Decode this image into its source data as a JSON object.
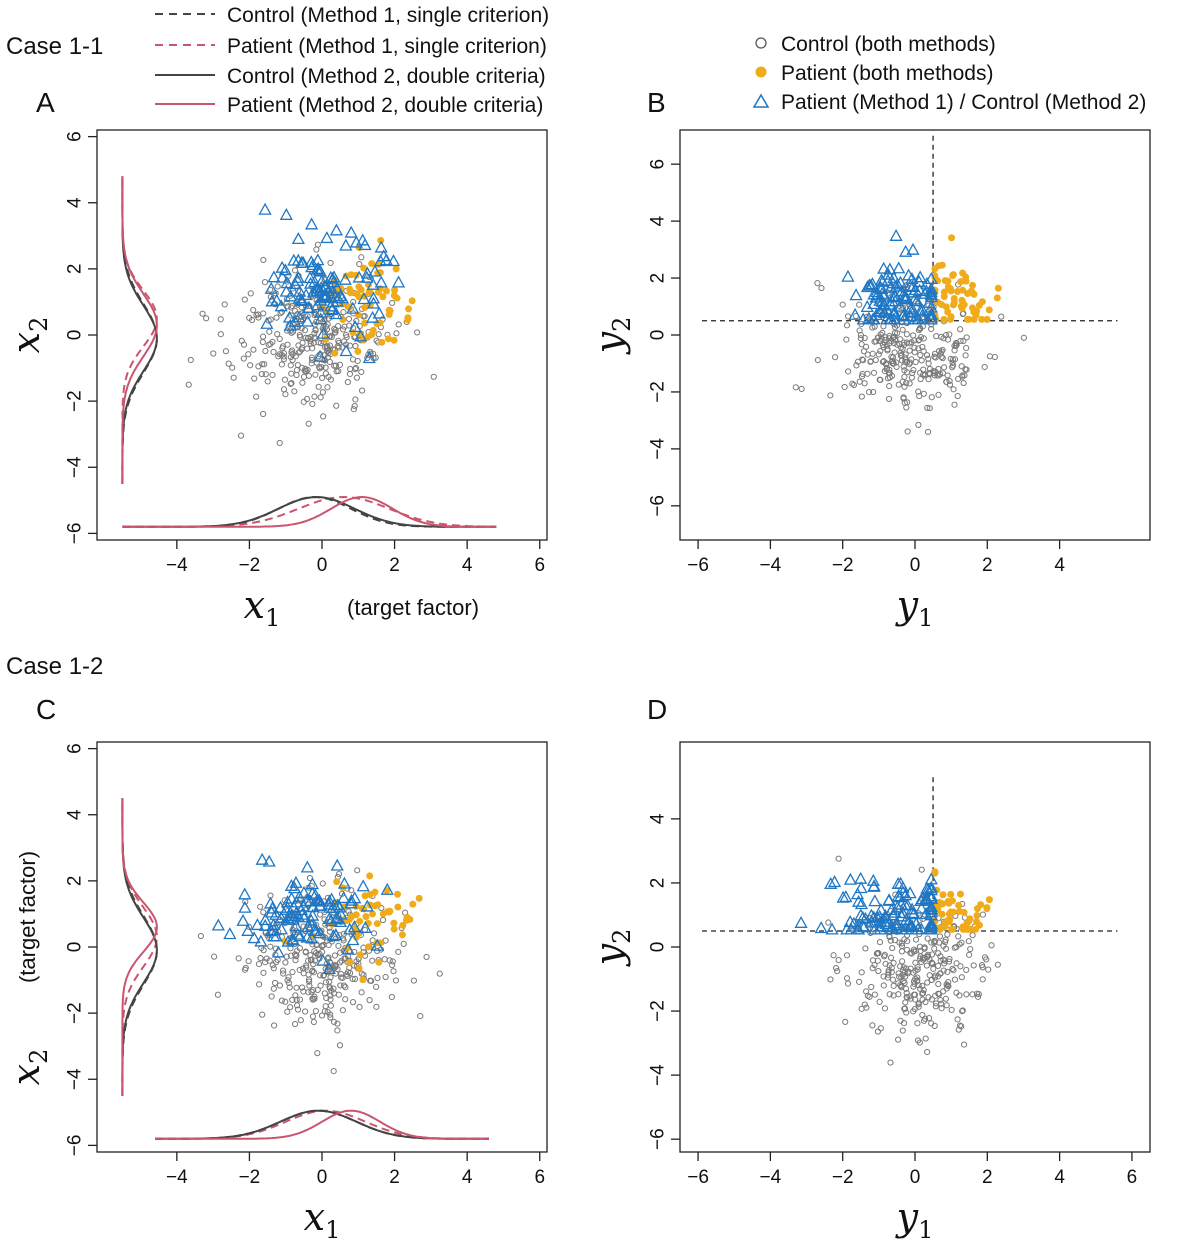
{
  "figure": {
    "case_labels": [
      "Case 1-1",
      "Case 1-2"
    ],
    "legend_left": [
      {
        "label": "Control (Method 1, single criterion)",
        "color": "#444444",
        "dash": true
      },
      {
        "label": "Patient (Method 1, single criterion)",
        "color": "#c9566e",
        "dash": true
      },
      {
        "label": "Control (Method 2, double criteria)",
        "color": "#444444",
        "dash": false
      },
      {
        "label": "Patient (Method 2, double criteria)",
        "color": "#c9566e",
        "dash": false
      }
    ],
    "legend_right": [
      {
        "label": "Control (both methods)",
        "marker": "open-circle",
        "color": "#555555"
      },
      {
        "label": "Patient (both methods)",
        "marker": "filled-circle",
        "color": "#f0ab1a"
      },
      {
        "label": "Patient (Method 1) / Control (Method 2)",
        "marker": "open-triangle",
        "color": "#1f77c4"
      }
    ],
    "colors": {
      "control_point": "#7a7a7a",
      "patient_point": "#f0ab1a",
      "switch_point": "#1f77c4",
      "control_line": "#444444",
      "patient_line": "#c9566e"
    }
  },
  "chart_data": [
    {
      "panel": "A",
      "type": "scatter",
      "xlabel_math": "x",
      "xlabel_sub": "1",
      "xlabel_extra": "(target factor)",
      "ylabel_math": "x",
      "ylabel_sub": "2",
      "ylabel_extra": "",
      "xlim": [
        -6.2,
        6.2
      ],
      "ylim": [
        -6.2,
        6.2
      ],
      "xticks": [
        -4,
        -2,
        0,
        2,
        4,
        6
      ],
      "yticks": [
        -6,
        -4,
        -2,
        0,
        2,
        4,
        6
      ],
      "control_center": [
        -0.3,
        -0.2
      ],
      "control_sd": [
        1.05,
        1.05
      ],
      "control_n": 330,
      "blue_center": [
        0.2,
        1.4
      ],
      "blue_sd": [
        0.75,
        0.75
      ],
      "blue_n": 115,
      "patient_center": [
        1.2,
        0.8
      ],
      "patient_sd": [
        0.6,
        0.9
      ],
      "patient_n": 65,
      "marginals": {
        "baseline_y": -5.8,
        "baseline_x": -5.5,
        "x_density": {
          "x_range": [
            -5.5,
            4.8
          ],
          "peak_height": 0.9,
          "curves": [
            {
              "series": "Control M1",
              "mu": -0.2,
              "sd": 1.0,
              "dash": true
            },
            {
              "series": "Patient M1",
              "mu": 0.6,
              "sd": 1.25,
              "dash": true
            },
            {
              "series": "Control M2",
              "mu": -0.15,
              "sd": 1.05,
              "dash": false
            },
            {
              "series": "Patient M2",
              "mu": 1.1,
              "sd": 0.85,
              "dash": false
            }
          ]
        },
        "y_density": {
          "y_range": [
            -4.5,
            4.8
          ],
          "peak_width": 0.95,
          "curves": [
            {
              "series": "Control M1",
              "mu": -0.1,
              "sd": 1.05,
              "dash": true
            },
            {
              "series": "Patient M1",
              "mu": 0.5,
              "sd": 0.85,
              "dash": true
            },
            {
              "series": "Control M2",
              "mu": -0.1,
              "sd": 1.0,
              "dash": false
            },
            {
              "series": "Patient M2",
              "mu": 0.3,
              "sd": 0.95,
              "dash": false
            }
          ]
        }
      }
    },
    {
      "panel": "B",
      "type": "scatter",
      "xlabel_math": "y",
      "xlabel_sub": "1",
      "xlabel_extra": "",
      "ylabel_math": "y",
      "ylabel_sub": "2",
      "ylabel_extra": "",
      "xlim": [
        -6.5,
        6.5
      ],
      "ylim": [
        -7.2,
        7.2
      ],
      "xticks": [
        -6,
        -4,
        -2,
        0,
        2,
        4
      ],
      "yticks": [
        -6,
        -4,
        -2,
        0,
        2,
        4,
        6
      ],
      "thresholds": {
        "x": 0.5,
        "y": 0.5,
        "vline_top": 7.0,
        "hline_right": 5.6
      },
      "control_center": [
        -0.2,
        -0.5
      ],
      "control_sd": [
        0.95,
        0.95
      ],
      "control_n": 300,
      "blue_center": [
        -0.4,
        1.2
      ],
      "blue_sd": [
        0.6,
        0.6
      ],
      "blue_n": 110,
      "patient_center": [
        1.2,
        1.3
      ],
      "patient_sd": [
        0.5,
        0.7
      ],
      "patient_n": 60
    },
    {
      "panel": "C",
      "type": "scatter",
      "xlabel_math": "x",
      "xlabel_sub": "1",
      "xlabel_extra": "",
      "ylabel_math": "x",
      "ylabel_sub": "2",
      "ylabel_extra": "(target factor)",
      "xlim": [
        -6.2,
        6.2
      ],
      "ylim": [
        -6.2,
        6.2
      ],
      "xticks": [
        -4,
        -2,
        0,
        2,
        4,
        6
      ],
      "yticks": [
        -6,
        -4,
        -2,
        0,
        2,
        4,
        6
      ],
      "control_center": [
        0.0,
        -0.4
      ],
      "control_sd": [
        1.05,
        1.0
      ],
      "control_n": 330,
      "blue_center": [
        -0.4,
        1.0
      ],
      "blue_sd": [
        0.85,
        0.6
      ],
      "blue_n": 110,
      "patient_center": [
        1.1,
        0.8
      ],
      "patient_sd": [
        0.7,
        0.6
      ],
      "patient_n": 55,
      "marginals": {
        "baseline_y": -5.8,
        "baseline_x": -5.5,
        "x_density": {
          "x_range": [
            -4.6,
            4.6
          ],
          "peak_height": 0.85,
          "curves": [
            {
              "series": "Control M1",
              "mu": -0.1,
              "sd": 1.05,
              "dash": true
            },
            {
              "series": "Patient M1",
              "mu": 0.1,
              "sd": 1.1,
              "dash": true
            },
            {
              "series": "Control M2",
              "mu": -0.1,
              "sd": 1.05,
              "dash": false
            },
            {
              "series": "Patient M2",
              "mu": 0.8,
              "sd": 0.8,
              "dash": false
            }
          ]
        },
        "y_density": {
          "y_range": [
            -4.5,
            4.5
          ],
          "peak_width": 0.95,
          "curves": [
            {
              "series": "Control M1",
              "mu": -0.1,
              "sd": 1.05,
              "dash": true
            },
            {
              "series": "Patient M1",
              "mu": 0.3,
              "sd": 0.9,
              "dash": true
            },
            {
              "series": "Control M2",
              "mu": -0.1,
              "sd": 1.0,
              "dash": false
            },
            {
              "series": "Patient M2",
              "mu": 0.6,
              "sd": 0.75,
              "dash": false
            }
          ]
        }
      }
    },
    {
      "panel": "D",
      "type": "scatter",
      "xlabel_math": "y",
      "xlabel_sub": "1",
      "xlabel_extra": "",
      "ylabel_math": "y",
      "ylabel_sub": "2",
      "ylabel_extra": "",
      "xlim": [
        -6.5,
        6.5
      ],
      "ylim": [
        -6.4,
        6.4
      ],
      "xticks": [
        -6,
        -4,
        -2,
        0,
        2,
        4,
        6
      ],
      "yticks": [
        -6,
        -4,
        -2,
        0,
        2,
        4
      ],
      "thresholds": {
        "x": 0.5,
        "y": 0.5,
        "vline_top": 5.3,
        "hline_right": 5.6
      },
      "control_center": [
        0.1,
        -0.6
      ],
      "control_sd": [
        0.95,
        0.95
      ],
      "control_n": 300,
      "blue_center": [
        -0.6,
        1.1
      ],
      "blue_sd": [
        0.85,
        0.55
      ],
      "blue_n": 110,
      "patient_center": [
        1.1,
        1.0
      ],
      "patient_sd": [
        0.45,
        0.55
      ],
      "patient_n": 55
    }
  ]
}
